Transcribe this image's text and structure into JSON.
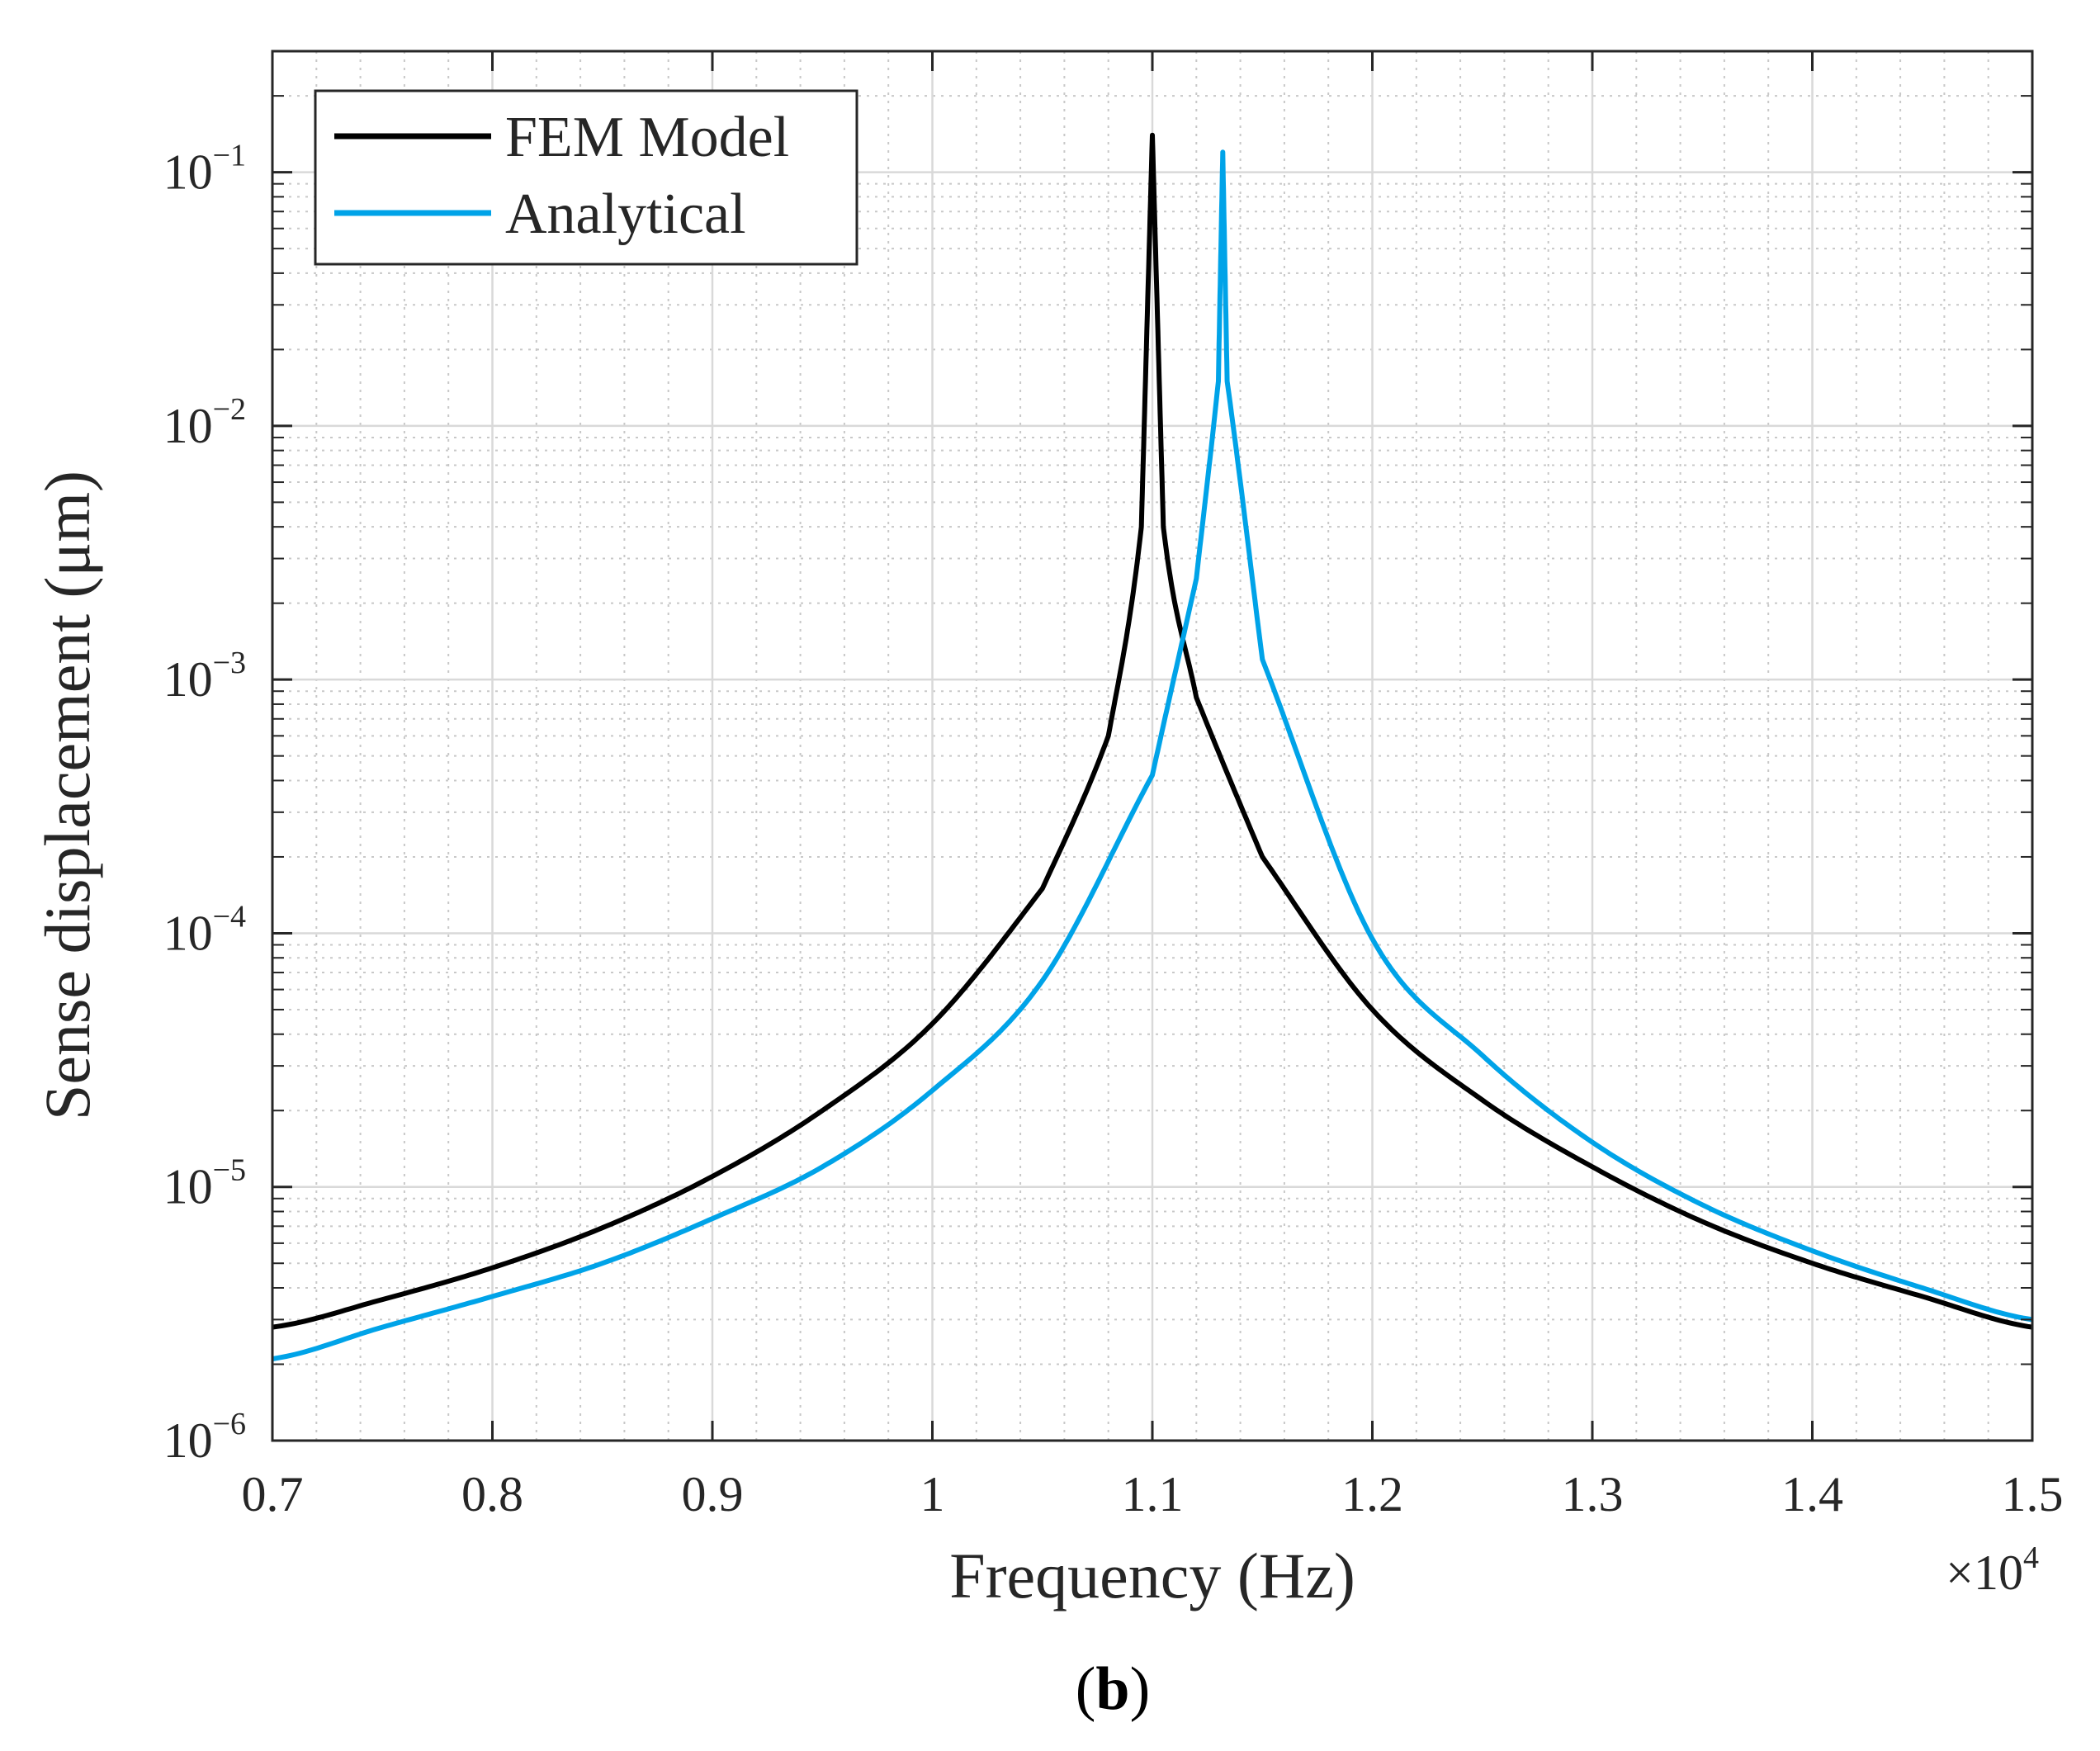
{
  "chart_data": {
    "type": "line",
    "title": "",
    "xlabel": "Frequency (Hz)",
    "ylabel": "Sense displacement (μm)",
    "x_scale": "linear",
    "y_scale": "log",
    "xlim": [
      7000,
      15000
    ],
    "ylim": [
      1e-06,
      0.3
    ],
    "grid": true,
    "minor_grid": true,
    "x_ticks": [
      {
        "value": 7000,
        "label": "0.7"
      },
      {
        "value": 8000,
        "label": "0.8"
      },
      {
        "value": 9000,
        "label": "0.9"
      },
      {
        "value": 10000,
        "label": "1"
      },
      {
        "value": 11000,
        "label": "1.1"
      },
      {
        "value": 12000,
        "label": "1.2"
      },
      {
        "value": 13000,
        "label": "1.3"
      },
      {
        "value": 14000,
        "label": "1.4"
      },
      {
        "value": 15000,
        "label": "1.5"
      }
    ],
    "x_multiplier": {
      "base": "×10",
      "exp": "4"
    },
    "y_ticks": [
      {
        "value": 1e-06,
        "base": "10",
        "exp": "−6"
      },
      {
        "value": 1e-05,
        "base": "10",
        "exp": "−5"
      },
      {
        "value": 0.0001,
        "base": "10",
        "exp": "−4"
      },
      {
        "value": 0.001,
        "base": "10",
        "exp": "−3"
      },
      {
        "value": 0.01,
        "base": "10",
        "exp": "−2"
      },
      {
        "value": 0.1,
        "base": "10",
        "exp": "−1"
      }
    ],
    "legend_position": "top-left",
    "series": [
      {
        "name": "FEM Model",
        "color": "#000000",
        "resonance_hz": 11000,
        "x": [
          7000,
          7500,
          8000,
          8500,
          9000,
          9500,
          10000,
          10500,
          10800,
          10950,
          11000,
          11050,
          11200,
          11500,
          12000,
          12500,
          13000,
          13500,
          14000,
          14500,
          15000
        ],
        "y": [
          2.8e-06,
          3.6e-06,
          4.8e-06,
          6.9e-06,
          1.1e-05,
          2e-05,
          4.4e-05,
          0.00015,
          0.0006,
          0.004,
          0.14,
          0.004,
          0.00085,
          0.0002,
          5e-05,
          2.2e-05,
          1.2e-05,
          7.3e-06,
          5e-06,
          3.7e-06,
          2.8e-06
        ]
      },
      {
        "name": "Analytical",
        "color": "#00a3e8",
        "resonance_hz": 11320,
        "x": [
          7000,
          7500,
          8000,
          8500,
          9000,
          9500,
          10000,
          10500,
          11000,
          11200,
          11300,
          11320,
          11340,
          11500,
          12000,
          12500,
          13000,
          13500,
          14000,
          14500,
          15000
        ],
        "y": [
          2.1e-06,
          2.8e-06,
          3.7e-06,
          5e-06,
          7.5e-06,
          1.2e-05,
          2.4e-05,
          6.5e-05,
          0.00042,
          0.0025,
          0.015,
          0.12,
          0.015,
          0.0012,
          9.5e-05,
          3.3e-05,
          1.5e-05,
          8.5e-06,
          5.6e-06,
          4e-06,
          3e-06
        ]
      }
    ]
  },
  "caption": {
    "open": "(",
    "letter": "b",
    "close": ")"
  }
}
